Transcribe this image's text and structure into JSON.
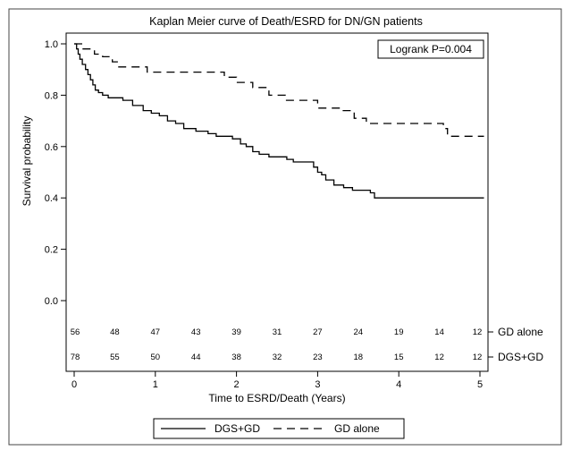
{
  "chart_data": {
    "type": "line",
    "title": "Kaplan Meier curve of Death/ESRD for DN/GN patients",
    "xlabel": "Time to ESRD/Death (Years)",
    "ylabel": "Survival probability",
    "xlim": [
      0,
      5
    ],
    "ylim": [
      0,
      1
    ],
    "x_ticks": [
      "0",
      "1",
      "2",
      "3",
      "4",
      "5"
    ],
    "y_ticks": [
      "0.0",
      "0.2",
      "0.4",
      "0.6",
      "0.8",
      "1.0"
    ],
    "annotation": "Logrank P=0.004",
    "legend_position": "bottom",
    "grid": false,
    "series": [
      {
        "name": "DGS+GD",
        "line_style": "solid",
        "color": "#000000",
        "points": [
          [
            0,
            1.0
          ],
          [
            0.03,
            0.98
          ],
          [
            0.05,
            0.96
          ],
          [
            0.07,
            0.94
          ],
          [
            0.1,
            0.92
          ],
          [
            0.14,
            0.9
          ],
          [
            0.17,
            0.88
          ],
          [
            0.2,
            0.86
          ],
          [
            0.23,
            0.84
          ],
          [
            0.26,
            0.82
          ],
          [
            0.3,
            0.81
          ],
          [
            0.35,
            0.8
          ],
          [
            0.42,
            0.79
          ],
          [
            0.6,
            0.78
          ],
          [
            0.72,
            0.76
          ],
          [
            0.85,
            0.74
          ],
          [
            0.95,
            0.73
          ],
          [
            1.05,
            0.72
          ],
          [
            1.15,
            0.7
          ],
          [
            1.25,
            0.69
          ],
          [
            1.35,
            0.67
          ],
          [
            1.5,
            0.66
          ],
          [
            1.65,
            0.65
          ],
          [
            1.75,
            0.64
          ],
          [
            1.95,
            0.63
          ],
          [
            2.05,
            0.61
          ],
          [
            2.12,
            0.6
          ],
          [
            2.2,
            0.58
          ],
          [
            2.28,
            0.57
          ],
          [
            2.4,
            0.56
          ],
          [
            2.62,
            0.55
          ],
          [
            2.7,
            0.54
          ],
          [
            2.95,
            0.52
          ],
          [
            3.0,
            0.5
          ],
          [
            3.05,
            0.49
          ],
          [
            3.1,
            0.47
          ],
          [
            3.2,
            0.45
          ],
          [
            3.32,
            0.44
          ],
          [
            3.43,
            0.43
          ],
          [
            3.65,
            0.42
          ],
          [
            3.7,
            0.4
          ],
          [
            5.05,
            0.4
          ]
        ]
      },
      {
        "name": "GD alone",
        "line_style": "dashed",
        "color": "#000000",
        "points": [
          [
            0,
            1.0
          ],
          [
            0.1,
            0.98
          ],
          [
            0.25,
            0.96
          ],
          [
            0.35,
            0.95
          ],
          [
            0.47,
            0.93
          ],
          [
            0.55,
            0.91
          ],
          [
            0.9,
            0.89
          ],
          [
            1.85,
            0.87
          ],
          [
            2.0,
            0.85
          ],
          [
            2.2,
            0.83
          ],
          [
            2.4,
            0.8
          ],
          [
            2.6,
            0.78
          ],
          [
            3.0,
            0.75
          ],
          [
            3.3,
            0.74
          ],
          [
            3.45,
            0.71
          ],
          [
            3.6,
            0.69
          ],
          [
            4.55,
            0.67
          ],
          [
            4.6,
            0.64
          ],
          [
            5.05,
            0.64
          ]
        ]
      }
    ],
    "at_risk": {
      "times": [
        0,
        0.5,
        1,
        1.5,
        2,
        2.5,
        3,
        3.5,
        4,
        4.5,
        5
      ],
      "rows": [
        {
          "label": "GD alone",
          "counts": [
            "56",
            "48",
            "47",
            "43",
            "39",
            "31",
            "27",
            "24",
            "19",
            "14",
            "12"
          ]
        },
        {
          "label": "DGS+GD",
          "counts": [
            "78",
            "55",
            "50",
            "44",
            "38",
            "32",
            "23",
            "18",
            "15",
            "12",
            "12"
          ]
        }
      ]
    }
  }
}
